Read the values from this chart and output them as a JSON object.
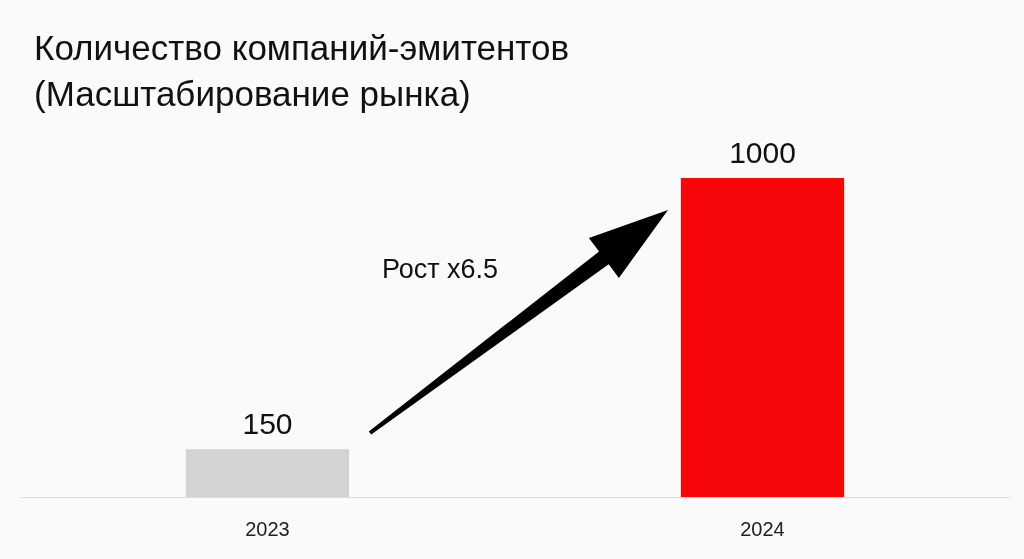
{
  "chart_data": {
    "type": "bar",
    "title": [
      "Количество компаний-эмитентов",
      "(Масштабирование рынка)"
    ],
    "categories": [
      "2023",
      "2024"
    ],
    "values": [
      150,
      1000
    ],
    "colors": [
      "#d3d3d3",
      "#f7060a"
    ],
    "data_labels": true,
    "annotations": [
      "Рост x6.5"
    ]
  }
}
